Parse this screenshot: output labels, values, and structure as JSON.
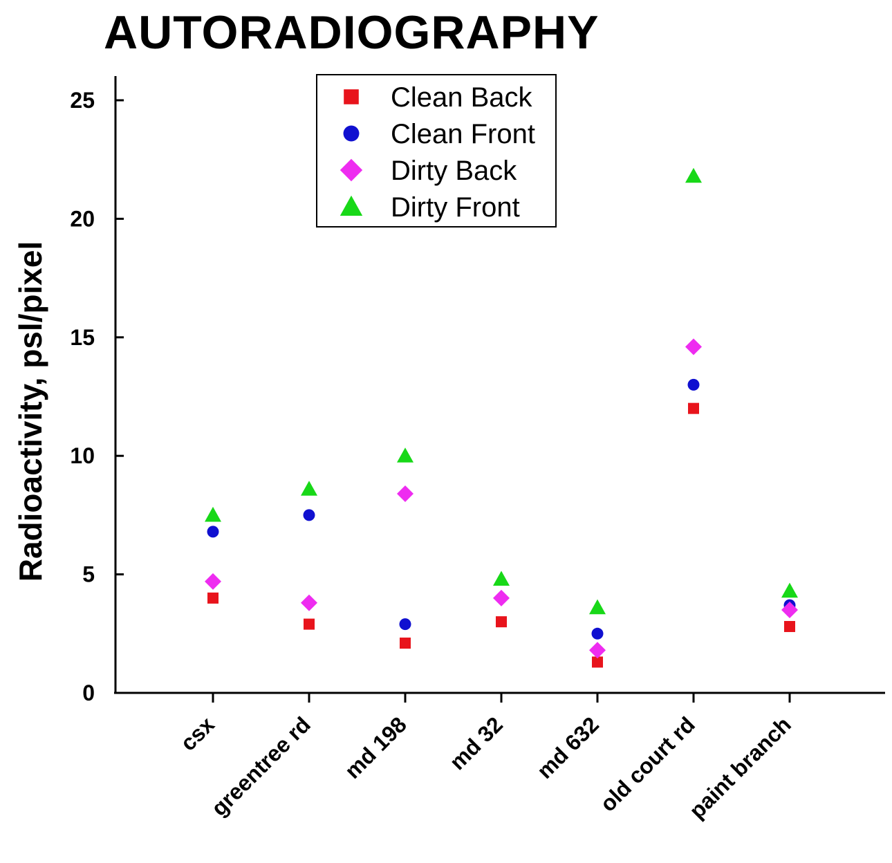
{
  "chart_data": {
    "type": "scatter",
    "title": "AUTORADIOGRAPHY",
    "xlabel": "",
    "ylabel": "Radioactivity, psl/pixel",
    "categories": [
      "csx",
      "greentree rd",
      "md 198",
      "md 32",
      "md 632",
      "old court rd",
      "paint branch"
    ],
    "yticks": [
      0,
      5,
      10,
      15,
      20,
      25
    ],
    "ylim": [
      0,
      26
    ],
    "grid": false,
    "legend_position": "top-center",
    "series": [
      {
        "name": "Clean Back",
        "marker": "square",
        "color": "#e8141c",
        "values": [
          4.0,
          2.9,
          2.1,
          3.0,
          1.3,
          12.0,
          2.8
        ]
      },
      {
        "name": "Clean Front",
        "marker": "circle",
        "color": "#1010d0",
        "values": [
          6.8,
          7.5,
          2.9,
          null,
          2.5,
          13.0,
          3.7
        ]
      },
      {
        "name": "Dirty Back",
        "marker": "diamond",
        "color": "#ee2cf0",
        "values": [
          4.7,
          3.8,
          8.4,
          4.0,
          1.8,
          14.6,
          3.5
        ]
      },
      {
        "name": "Dirty Front",
        "marker": "triangle",
        "color": "#18d818",
        "values": [
          7.5,
          8.6,
          10.0,
          4.8,
          3.6,
          21.8,
          4.3
        ]
      }
    ]
  }
}
